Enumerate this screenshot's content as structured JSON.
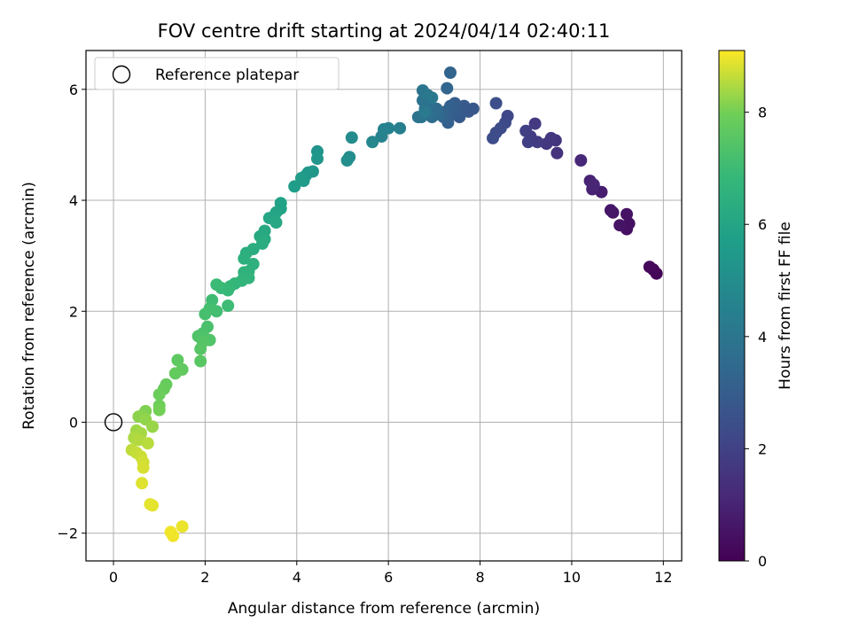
{
  "chart_data": {
    "type": "scatter",
    "title": "FOV centre drift starting at 2024/04/14 02:40:11",
    "xlabel": "Angular distance from reference (arcmin)",
    "ylabel": "Rotation from reference (arcmin)",
    "xlim": [
      -0.6,
      12.4
    ],
    "ylim": [
      -2.5,
      6.7
    ],
    "xticks": [
      0,
      2,
      4,
      6,
      8,
      10,
      12
    ],
    "yticks": [
      -2,
      0,
      2,
      4,
      6
    ],
    "grid": true,
    "legend": {
      "placement": "top-left",
      "entries": [
        {
          "label": "Reference platepar",
          "marker": "open-circle",
          "color": "#000000"
        }
      ]
    },
    "reference_point": {
      "x": 0,
      "y": 0,
      "name": "Reference platepar"
    },
    "colorbar": {
      "label": "Hours from first FF file",
      "colormap": "viridis",
      "range": [
        0,
        9.1
      ],
      "ticks": [
        0,
        2,
        4,
        6,
        8
      ]
    },
    "points": [
      {
        "x": 11.85,
        "y": 2.68,
        "c": 0.1
      },
      {
        "x": 11.78,
        "y": 2.75,
        "c": 0.15
      },
      {
        "x": 11.7,
        "y": 2.8,
        "c": 0.2
      },
      {
        "x": 11.2,
        "y": 3.48,
        "c": 0.4
      },
      {
        "x": 11.25,
        "y": 3.58,
        "c": 0.45
      },
      {
        "x": 11.2,
        "y": 3.75,
        "c": 0.5
      },
      {
        "x": 11.05,
        "y": 3.55,
        "c": 0.55
      },
      {
        "x": 10.9,
        "y": 3.78,
        "c": 0.6
      },
      {
        "x": 10.85,
        "y": 3.82,
        "c": 0.65
      },
      {
        "x": 10.65,
        "y": 4.15,
        "c": 0.85
      },
      {
        "x": 10.45,
        "y": 4.2,
        "c": 0.95
      },
      {
        "x": 10.4,
        "y": 4.35,
        "c": 1.0
      },
      {
        "x": 10.48,
        "y": 4.28,
        "c": 1.05
      },
      {
        "x": 10.2,
        "y": 4.72,
        "c": 1.15
      },
      {
        "x": 9.68,
        "y": 4.85,
        "c": 1.5
      },
      {
        "x": 9.65,
        "y": 5.08,
        "c": 1.55
      },
      {
        "x": 9.55,
        "y": 5.12,
        "c": 1.6
      },
      {
        "x": 9.45,
        "y": 5.02,
        "c": 1.65
      },
      {
        "x": 9.2,
        "y": 5.38,
        "c": 1.75
      },
      {
        "x": 9.25,
        "y": 5.05,
        "c": 1.8
      },
      {
        "x": 9.1,
        "y": 5.15,
        "c": 1.85
      },
      {
        "x": 9.05,
        "y": 5.05,
        "c": 1.9
      },
      {
        "x": 9.0,
        "y": 5.25,
        "c": 1.95
      },
      {
        "x": 8.6,
        "y": 5.52,
        "c": 2.2
      },
      {
        "x": 8.55,
        "y": 5.4,
        "c": 2.25
      },
      {
        "x": 8.45,
        "y": 5.3,
        "c": 2.3
      },
      {
        "x": 8.35,
        "y": 5.22,
        "c": 2.35
      },
      {
        "x": 8.28,
        "y": 5.12,
        "c": 2.4
      },
      {
        "x": 8.35,
        "y": 5.75,
        "c": 2.45
      },
      {
        "x": 7.85,
        "y": 5.65,
        "c": 2.75
      },
      {
        "x": 7.75,
        "y": 5.6,
        "c": 2.8
      },
      {
        "x": 7.65,
        "y": 5.7,
        "c": 2.85
      },
      {
        "x": 7.55,
        "y": 5.5,
        "c": 2.9
      },
      {
        "x": 7.5,
        "y": 5.65,
        "c": 2.95
      },
      {
        "x": 7.45,
        "y": 5.75,
        "c": 3.0
      },
      {
        "x": 7.4,
        "y": 5.55,
        "c": 3.05
      },
      {
        "x": 7.35,
        "y": 5.7,
        "c": 3.1
      },
      {
        "x": 7.3,
        "y": 5.4,
        "c": 3.15
      },
      {
        "x": 7.25,
        "y": 5.6,
        "c": 3.2
      },
      {
        "x": 7.2,
        "y": 5.5,
        "c": 3.25
      },
      {
        "x": 7.35,
        "y": 6.3,
        "c": 3.3
      },
      {
        "x": 7.28,
        "y": 6.02,
        "c": 3.35
      },
      {
        "x": 7.1,
        "y": 5.55,
        "c": 3.5
      },
      {
        "x": 7.05,
        "y": 5.65,
        "c": 3.55
      },
      {
        "x": 7.0,
        "y": 5.6,
        "c": 3.6
      },
      {
        "x": 6.95,
        "y": 5.5,
        "c": 3.65
      },
      {
        "x": 6.9,
        "y": 5.75,
        "c": 3.7
      },
      {
        "x": 6.85,
        "y": 5.55,
        "c": 3.75
      },
      {
        "x": 6.8,
        "y": 5.65,
        "c": 3.8
      },
      {
        "x": 6.75,
        "y": 5.8,
        "c": 3.85
      },
      {
        "x": 6.72,
        "y": 5.5,
        "c": 3.9
      },
      {
        "x": 6.65,
        "y": 5.5,
        "c": 3.95
      },
      {
        "x": 6.75,
        "y": 5.98,
        "c": 4.0
      },
      {
        "x": 6.85,
        "y": 5.9,
        "c": 4.05
      },
      {
        "x": 6.95,
        "y": 5.85,
        "c": 4.1
      },
      {
        "x": 6.8,
        "y": 5.6,
        "c": 4.15
      },
      {
        "x": 6.25,
        "y": 5.3,
        "c": 4.4
      },
      {
        "x": 6.0,
        "y": 5.3,
        "c": 4.5
      },
      {
        "x": 5.9,
        "y": 5.28,
        "c": 4.55
      },
      {
        "x": 5.85,
        "y": 5.15,
        "c": 4.6
      },
      {
        "x": 5.65,
        "y": 5.05,
        "c": 4.7
      },
      {
        "x": 5.2,
        "y": 5.13,
        "c": 4.95
      },
      {
        "x": 5.15,
        "y": 4.78,
        "c": 5.0
      },
      {
        "x": 5.1,
        "y": 4.72,
        "c": 5.05
      },
      {
        "x": 4.45,
        "y": 4.88,
        "c": 5.3
      },
      {
        "x": 4.45,
        "y": 4.75,
        "c": 5.35
      },
      {
        "x": 4.35,
        "y": 4.52,
        "c": 5.4
      },
      {
        "x": 4.25,
        "y": 4.5,
        "c": 5.45
      },
      {
        "x": 4.2,
        "y": 4.45,
        "c": 5.5
      },
      {
        "x": 4.15,
        "y": 4.35,
        "c": 5.55
      },
      {
        "x": 4.1,
        "y": 4.4,
        "c": 5.6
      },
      {
        "x": 3.95,
        "y": 4.25,
        "c": 5.65
      },
      {
        "x": 3.65,
        "y": 3.95,
        "c": 5.85
      },
      {
        "x": 3.65,
        "y": 3.85,
        "c": 5.9
      },
      {
        "x": 3.55,
        "y": 3.78,
        "c": 5.95
      },
      {
        "x": 3.5,
        "y": 3.7,
        "c": 6.0
      },
      {
        "x": 3.4,
        "y": 3.68,
        "c": 6.05
      },
      {
        "x": 3.55,
        "y": 3.6,
        "c": 6.1
      },
      {
        "x": 3.3,
        "y": 3.45,
        "c": 6.15
      },
      {
        "x": 3.2,
        "y": 3.35,
        "c": 6.2
      },
      {
        "x": 3.3,
        "y": 3.3,
        "c": 6.25
      },
      {
        "x": 3.25,
        "y": 3.22,
        "c": 6.3
      },
      {
        "x": 3.05,
        "y": 3.12,
        "c": 6.35
      },
      {
        "x": 2.9,
        "y": 3.05,
        "c": 6.4
      },
      {
        "x": 2.85,
        "y": 2.95,
        "c": 6.45
      },
      {
        "x": 3.05,
        "y": 2.85,
        "c": 6.5
      },
      {
        "x": 2.95,
        "y": 2.72,
        "c": 6.55
      },
      {
        "x": 2.85,
        "y": 2.7,
        "c": 6.6
      },
      {
        "x": 2.95,
        "y": 2.6,
        "c": 6.65
      },
      {
        "x": 2.8,
        "y": 2.55,
        "c": 6.7
      },
      {
        "x": 2.65,
        "y": 2.5,
        "c": 6.75
      },
      {
        "x": 2.55,
        "y": 2.45,
        "c": 6.8
      },
      {
        "x": 2.5,
        "y": 2.38,
        "c": 6.85
      },
      {
        "x": 2.35,
        "y": 2.42,
        "c": 6.9
      },
      {
        "x": 2.25,
        "y": 2.48,
        "c": 6.95
      },
      {
        "x": 2.5,
        "y": 2.1,
        "c": 7.0
      },
      {
        "x": 2.15,
        "y": 2.2,
        "c": 7.05
      },
      {
        "x": 2.25,
        "y": 2.0,
        "c": 7.1
      },
      {
        "x": 2.1,
        "y": 2.05,
        "c": 7.15
      },
      {
        "x": 2.0,
        "y": 1.95,
        "c": 7.2
      },
      {
        "x": 2.05,
        "y": 1.72,
        "c": 7.25
      },
      {
        "x": 1.95,
        "y": 1.6,
        "c": 7.3
      },
      {
        "x": 1.85,
        "y": 1.55,
        "c": 7.35
      },
      {
        "x": 2.1,
        "y": 1.48,
        "c": 7.4
      },
      {
        "x": 1.95,
        "y": 1.45,
        "c": 7.45
      },
      {
        "x": 1.9,
        "y": 1.32,
        "c": 7.5
      },
      {
        "x": 1.9,
        "y": 1.1,
        "c": 7.55
      },
      {
        "x": 1.4,
        "y": 1.12,
        "c": 7.65
      },
      {
        "x": 1.5,
        "y": 0.95,
        "c": 7.7
      },
      {
        "x": 1.35,
        "y": 0.88,
        "c": 7.75
      },
      {
        "x": 1.15,
        "y": 0.68,
        "c": 7.8
      },
      {
        "x": 1.1,
        "y": 0.6,
        "c": 7.85
      },
      {
        "x": 1.0,
        "y": 0.5,
        "c": 7.9
      },
      {
        "x": 1.0,
        "y": 0.3,
        "c": 7.95
      },
      {
        "x": 1.0,
        "y": 0.22,
        "c": 8.0
      },
      {
        "x": 0.7,
        "y": 0.2,
        "c": 8.1
      },
      {
        "x": 0.62,
        "y": 0.12,
        "c": 8.15
      },
      {
        "x": 0.55,
        "y": 0.1,
        "c": 8.2
      },
      {
        "x": 0.7,
        "y": 0.05,
        "c": 8.25
      },
      {
        "x": 0.85,
        "y": -0.08,
        "c": 8.3
      },
      {
        "x": 0.5,
        "y": -0.15,
        "c": 8.35
      },
      {
        "x": 0.6,
        "y": -0.2,
        "c": 8.4
      },
      {
        "x": 0.45,
        "y": -0.28,
        "c": 8.45
      },
      {
        "x": 0.55,
        "y": -0.32,
        "c": 8.5
      },
      {
        "x": 0.75,
        "y": -0.38,
        "c": 8.55
      },
      {
        "x": 0.4,
        "y": -0.5,
        "c": 8.6
      },
      {
        "x": 0.5,
        "y": -0.55,
        "c": 8.65
      },
      {
        "x": 0.6,
        "y": -0.62,
        "c": 8.7
      },
      {
        "x": 0.65,
        "y": -0.72,
        "c": 8.75
      },
      {
        "x": 0.65,
        "y": -0.82,
        "c": 8.8
      },
      {
        "x": 0.62,
        "y": -1.1,
        "c": 8.85
      },
      {
        "x": 0.85,
        "y": -1.5,
        "c": 8.9
      },
      {
        "x": 0.8,
        "y": -1.48,
        "c": 8.9
      },
      {
        "x": 1.5,
        "y": -1.88,
        "c": 8.95
      },
      {
        "x": 1.25,
        "y": -1.98,
        "c": 9.0
      },
      {
        "x": 1.3,
        "y": -2.05,
        "c": 9.0
      }
    ]
  }
}
